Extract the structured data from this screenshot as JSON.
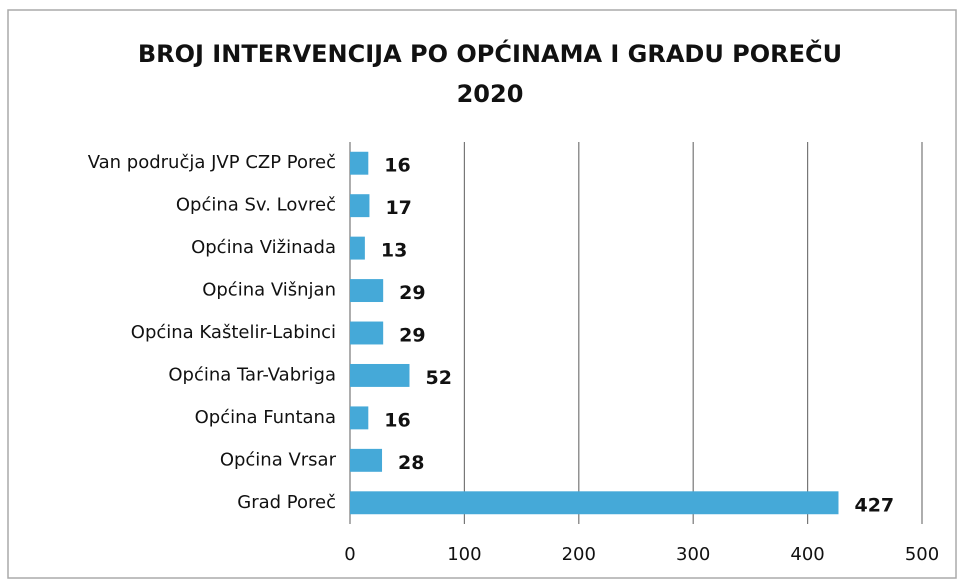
{
  "chart_data": {
    "type": "bar",
    "orientation": "horizontal",
    "title": "BROJ INTERVENCIJA PO OPĆINAMA I GRADU POREČU",
    "subtitle": "2020",
    "categories": [
      "Van područja JVP CZP Poreč",
      "Općina Sv. Lovreč",
      "Općina Vižinada",
      "Općina Višnjan",
      "Općina Kaštelir-Labinci",
      "Općina Tar-Vabriga",
      "Općina Funtana",
      "Općina Vrsar",
      "Grad Poreč"
    ],
    "values": [
      16,
      17,
      13,
      29,
      29,
      52,
      16,
      28,
      427
    ],
    "color": "#45a9d8",
    "xlim": [
      0,
      500
    ],
    "xticks": [
      0,
      100,
      200,
      300,
      400,
      500
    ],
    "grid": true
  }
}
